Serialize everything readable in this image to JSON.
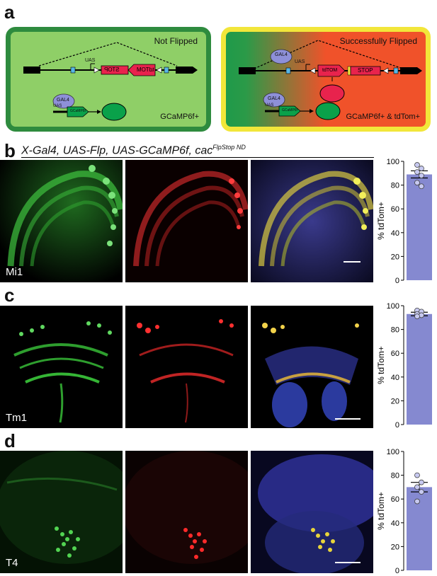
{
  "panels": {
    "a": "a",
    "b": "b",
    "c": "c",
    "d": "d"
  },
  "panel_a": {
    "left_box_title": "Not Flipped",
    "right_box_title": "Successfully Flipped",
    "left_output": "GCaMP6f+",
    "right_output": "GCaMP6f+ & tdTom+",
    "gal4": "GAL4",
    "uas": "UAS",
    "stop": "STOP",
    "tdtom": "tdTOM",
    "gcamp_small": "GCaMP6f",
    "colors": {
      "left_border": "#2e8b3e",
      "left_fill": "#8fcf67",
      "right_border": "#f2e63a",
      "right_fill_start": "#1f9a4a",
      "right_fill_end": "#f0522a",
      "gal4_fill": "#8e90d8",
      "green_oval": "#0aa14a",
      "red_oval": "#e8234d"
    }
  },
  "panel_b_title": "X-Gal4, UAS-Flp, UAS-GCaMP6f, cac",
  "panel_b_title_sup": "FlpStop ND",
  "cell_types": [
    "Mi1",
    "Tm1",
    "T4"
  ],
  "y_axis_label": "% tdTom+",
  "chart_data": [
    {
      "type": "bar",
      "categories": [
        "Mi1"
      ],
      "values": [
        89
      ],
      "error": 3,
      "points": [
        97,
        94,
        91,
        88,
        82,
        79
      ],
      "ylabel": "% tdTom+",
      "ylim": [
        0,
        100
      ],
      "yticks": [
        0,
        20,
        40,
        60,
        80,
        100
      ],
      "bar_color": "#8589d0"
    },
    {
      "type": "bar",
      "categories": [
        "Tm1"
      ],
      "values": [
        93
      ],
      "error": 1.5,
      "points": [
        96,
        95,
        93,
        92,
        91
      ],
      "ylabel": "% tdTom+",
      "ylim": [
        0,
        100
      ],
      "yticks": [
        0,
        20,
        40,
        60,
        80,
        100
      ],
      "bar_color": "#8589d0"
    },
    {
      "type": "bar",
      "categories": [
        "T4"
      ],
      "values": [
        70
      ],
      "error": 4,
      "points": [
        80,
        74,
        70,
        66,
        58
      ],
      "ylabel": "% tdTom+",
      "ylim": [
        0,
        100
      ],
      "yticks": [
        0,
        20,
        40,
        60,
        80,
        100
      ],
      "bar_color": "#8589d0"
    }
  ]
}
